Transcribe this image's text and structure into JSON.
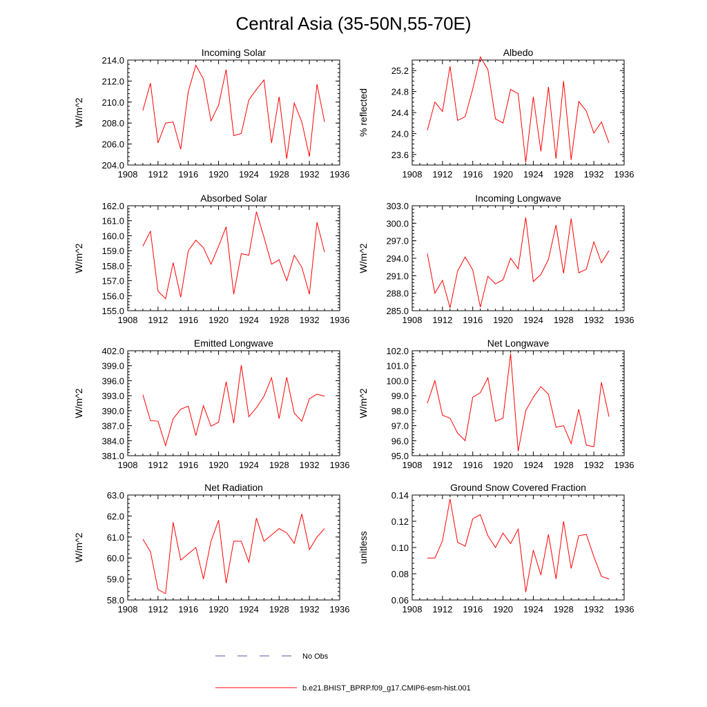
{
  "page_title": "Central Asia (35-50N,55-70E)",
  "legend": {
    "obs_label": "No Obs",
    "obs_color": "#5555aa",
    "model_label": "b.e21.BHIST_BPRP.f09_g17.CMIP6-esm-hist.001",
    "model_color": "#ff0000"
  },
  "chart_data": [
    {
      "type": "line",
      "title": "Incoming Solar",
      "ylabel": "W/m^2",
      "xlim": [
        1908,
        1936
      ],
      "xticks": [
        1908,
        1912,
        1916,
        1920,
        1924,
        1928,
        1932,
        1936
      ],
      "ylim": [
        204.0,
        214.0
      ],
      "yticks": [
        204.0,
        206.0,
        208.0,
        210.0,
        212.0,
        214.0
      ],
      "ydecimals": 1,
      "x": [
        1910,
        1911,
        1912,
        1913,
        1914,
        1915,
        1916,
        1917,
        1918,
        1919,
        1920,
        1921,
        1922,
        1923,
        1924,
        1925,
        1926,
        1927,
        1928,
        1929,
        1930,
        1931,
        1932,
        1933,
        1934
      ],
      "series": [
        {
          "values": [
            209.2,
            211.8,
            206.1,
            208.0,
            208.1,
            205.5,
            211.0,
            213.5,
            212.2,
            208.2,
            209.7,
            213.1,
            206.8,
            207.0,
            210.2,
            211.2,
            212.1,
            206.1,
            210.5,
            204.6,
            209.9,
            208.1,
            204.8,
            211.7,
            208.1
          ]
        }
      ]
    },
    {
      "type": "line",
      "title": "Albedo",
      "ylabel": "% reflected",
      "xlim": [
        1908,
        1936
      ],
      "xticks": [
        1908,
        1912,
        1916,
        1920,
        1924,
        1928,
        1932,
        1936
      ],
      "ylim": [
        23.4,
        25.4
      ],
      "yticks": [
        23.6,
        24.0,
        24.4,
        24.8,
        25.2
      ],
      "ydecimals": 1,
      "x": [
        1910,
        1911,
        1912,
        1913,
        1914,
        1915,
        1916,
        1917,
        1918,
        1919,
        1920,
        1921,
        1922,
        1923,
        1924,
        1925,
        1926,
        1927,
        1928,
        1929,
        1930,
        1931,
        1932,
        1933,
        1934
      ],
      "series": [
        {
          "values": [
            24.06,
            24.6,
            24.42,
            25.28,
            24.25,
            24.32,
            24.85,
            25.46,
            25.22,
            24.28,
            24.2,
            24.84,
            24.76,
            23.45,
            24.7,
            23.66,
            24.89,
            23.52,
            25.0,
            23.5,
            24.61,
            24.43,
            24.01,
            24.22,
            23.82
          ]
        }
      ]
    },
    {
      "type": "line",
      "title": "Absorbed Solar",
      "ylabel": "W/m^2",
      "xlim": [
        1908,
        1936
      ],
      "xticks": [
        1908,
        1912,
        1916,
        1920,
        1924,
        1928,
        1932,
        1936
      ],
      "ylim": [
        155.0,
        162.0
      ],
      "yticks": [
        155.0,
        156.0,
        157.0,
        158.0,
        159.0,
        160.0,
        161.0,
        162.0
      ],
      "ydecimals": 1,
      "x": [
        1910,
        1911,
        1912,
        1913,
        1914,
        1915,
        1916,
        1917,
        1918,
        1919,
        1920,
        1921,
        1922,
        1923,
        1924,
        1925,
        1926,
        1927,
        1928,
        1929,
        1930,
        1931,
        1932,
        1933,
        1934
      ],
      "series": [
        {
          "values": [
            159.3,
            160.3,
            156.3,
            155.8,
            158.2,
            155.9,
            159.0,
            159.7,
            159.2,
            158.1,
            159.3,
            160.6,
            156.1,
            158.8,
            158.7,
            161.6,
            159.9,
            158.1,
            158.4,
            157.0,
            158.7,
            157.9,
            156.1,
            160.9,
            158.9
          ]
        }
      ]
    },
    {
      "type": "line",
      "title": "Incoming Longwave",
      "ylabel": "W/m^2",
      "xlim": [
        1908,
        1936
      ],
      "xticks": [
        1908,
        1912,
        1916,
        1920,
        1924,
        1928,
        1932,
        1936
      ],
      "ylim": [
        285.0,
        303.0
      ],
      "yticks": [
        285.0,
        288.0,
        291.0,
        294.0,
        297.0,
        300.0,
        303.0
      ],
      "ydecimals": 1,
      "x": [
        1910,
        1911,
        1912,
        1913,
        1914,
        1915,
        1916,
        1917,
        1918,
        1919,
        1920,
        1921,
        1922,
        1923,
        1924,
        1925,
        1926,
        1927,
        1928,
        1929,
        1930,
        1931,
        1932,
        1933,
        1934
      ],
      "series": [
        {
          "values": [
            294.8,
            288.0,
            290.2,
            285.5,
            291.8,
            294.2,
            292.0,
            285.6,
            290.9,
            289.6,
            290.3,
            294.0,
            292.2,
            301.0,
            290.0,
            291.2,
            293.8,
            299.7,
            291.4,
            300.8,
            291.5,
            292.1,
            296.8,
            293.2,
            295.3
          ]
        }
      ]
    },
    {
      "type": "line",
      "title": "Emitted Longwave",
      "ylabel": "W/m^2",
      "xlim": [
        1908,
        1936
      ],
      "xticks": [
        1908,
        1912,
        1916,
        1920,
        1924,
        1928,
        1932,
        1936
      ],
      "ylim": [
        381.0,
        402.0
      ],
      "yticks": [
        381.0,
        384.0,
        387.0,
        390.0,
        393.0,
        396.0,
        399.0,
        402.0
      ],
      "ydecimals": 1,
      "x": [
        1910,
        1911,
        1912,
        1913,
        1914,
        1915,
        1916,
        1917,
        1918,
        1919,
        1920,
        1921,
        1922,
        1923,
        1924,
        1925,
        1926,
        1927,
        1928,
        1929,
        1930,
        1931,
        1932,
        1933,
        1934
      ],
      "series": [
        {
          "values": [
            393.2,
            388.0,
            387.9,
            383.0,
            388.4,
            390.3,
            390.9,
            385.0,
            391.0,
            386.9,
            387.7,
            395.8,
            387.5,
            399.1,
            388.8,
            390.6,
            392.9,
            396.6,
            388.4,
            396.7,
            389.5,
            387.9,
            392.4,
            393.3,
            392.9
          ]
        }
      ]
    },
    {
      "type": "line",
      "title": "Net Longwave",
      "ylabel": "W/m^2",
      "xlim": [
        1908,
        1936
      ],
      "xticks": [
        1908,
        1912,
        1916,
        1920,
        1924,
        1928,
        1932,
        1936
      ],
      "ylim": [
        95.0,
        102.0
      ],
      "yticks": [
        95.0,
        96.0,
        97.0,
        98.0,
        99.0,
        100.0,
        101.0,
        102.0
      ],
      "ydecimals": 1,
      "x": [
        1910,
        1911,
        1912,
        1913,
        1914,
        1915,
        1916,
        1917,
        1918,
        1919,
        1920,
        1921,
        1922,
        1923,
        1924,
        1925,
        1926,
        1927,
        1928,
        1929,
        1930,
        1931,
        1932,
        1933,
        1934
      ],
      "series": [
        {
          "values": [
            98.5,
            100.0,
            97.7,
            97.5,
            96.5,
            96.0,
            98.9,
            99.2,
            100.2,
            97.3,
            97.5,
            101.8,
            95.3,
            98.0,
            98.9,
            99.6,
            99.1,
            96.9,
            97.0,
            95.8,
            98.1,
            95.7,
            95.6,
            99.9,
            97.6
          ]
        }
      ]
    },
    {
      "type": "line",
      "title": "Net Radiation",
      "ylabel": "W/m^2",
      "xlim": [
        1908,
        1936
      ],
      "xticks": [
        1908,
        1912,
        1916,
        1920,
        1924,
        1928,
        1932,
        1936
      ],
      "ylim": [
        58.0,
        63.0
      ],
      "yticks": [
        58.0,
        59.0,
        60.0,
        61.0,
        62.0,
        63.0
      ],
      "ydecimals": 1,
      "x": [
        1910,
        1911,
        1912,
        1913,
        1914,
        1915,
        1916,
        1917,
        1918,
        1919,
        1920,
        1921,
        1922,
        1923,
        1924,
        1925,
        1926,
        1927,
        1928,
        1929,
        1930,
        1931,
        1932,
        1933,
        1934
      ],
      "series": [
        {
          "values": [
            60.9,
            60.3,
            58.5,
            58.3,
            61.7,
            59.9,
            60.2,
            60.5,
            59.0,
            60.8,
            61.8,
            58.8,
            60.8,
            60.8,
            59.8,
            61.9,
            60.8,
            61.1,
            61.4,
            61.2,
            60.7,
            62.1,
            60.4,
            61.0,
            61.4
          ]
        }
      ]
    },
    {
      "type": "line",
      "title": "Ground Snow Covered Fraction",
      "ylabel": "unitless",
      "xlim": [
        1908,
        1936
      ],
      "xticks": [
        1908,
        1912,
        1916,
        1920,
        1924,
        1928,
        1932,
        1936
      ],
      "ylim": [
        0.06,
        0.14
      ],
      "yticks": [
        0.06,
        0.08,
        0.1,
        0.12,
        0.14
      ],
      "ydecimals": 2,
      "x": [
        1910,
        1911,
        1912,
        1913,
        1914,
        1915,
        1916,
        1917,
        1918,
        1919,
        1920,
        1921,
        1922,
        1923,
        1924,
        1925,
        1926,
        1927,
        1928,
        1929,
        1930,
        1931,
        1932,
        1933,
        1934
      ],
      "series": [
        {
          "values": [
            0.092,
            0.092,
            0.105,
            0.137,
            0.104,
            0.101,
            0.122,
            0.125,
            0.109,
            0.1,
            0.111,
            0.103,
            0.114,
            0.066,
            0.098,
            0.079,
            0.11,
            0.076,
            0.12,
            0.084,
            0.109,
            0.11,
            0.093,
            0.078,
            0.076
          ]
        }
      ]
    }
  ]
}
